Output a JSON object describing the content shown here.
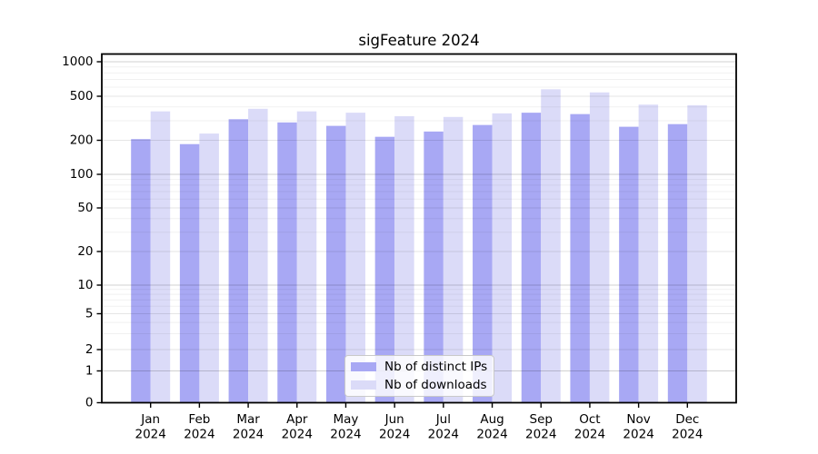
{
  "chart_data": {
    "type": "bar",
    "title": "sigFeature 2024",
    "categories": [
      "Jan",
      "Feb",
      "Mar",
      "Apr",
      "May",
      "Jun",
      "Jul",
      "Aug",
      "Sep",
      "Oct",
      "Nov",
      "Dec"
    ],
    "category_year": "2024",
    "series": [
      {
        "name": "Nb of distinct IPs",
        "color": "#a8a8f4",
        "values": [
          205,
          185,
          310,
          290,
          270,
          215,
          240,
          275,
          355,
          345,
          265,
          280
        ]
      },
      {
        "name": "Nb of downloads",
        "color": "#dbdbf8",
        "values": [
          365,
          230,
          385,
          365,
          355,
          330,
          325,
          350,
          575,
          540,
          420,
          415
        ]
      }
    ],
    "yscale": "symlog",
    "y_ticks": [
      0,
      1,
      2,
      5,
      10,
      20,
      50,
      100,
      200,
      500,
      1000
    ],
    "ylim": [
      0,
      1170
    ],
    "xlabel": "",
    "ylabel": "",
    "grid": true,
    "legend_position": "lower center",
    "grid_color_decade": "#d1d1d1",
    "grid_color_mid": "#e5e5e5",
    "grid_color_minor": "#f1f1f1",
    "axis_color": "#000000"
  }
}
